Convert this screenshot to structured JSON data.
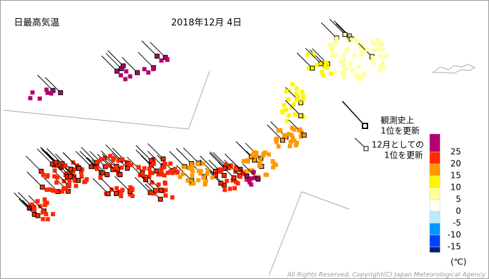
{
  "header": {
    "title": "日最高気温",
    "date": "2018年12月 4日"
  },
  "notes": {
    "record_all_time": [
      "観測史上",
      "1位を更新"
    ],
    "record_december": [
      "12月としての",
      "1位を更新"
    ]
  },
  "legend": {
    "colors": [
      "#b4006e",
      "#ff2800",
      "#ff9900",
      "#fff500",
      "#ffffa0",
      "#fffff2",
      "#b9ebff",
      "#0096ff",
      "#0041ff",
      "#002080"
    ],
    "labels": [
      25,
      20,
      15,
      10,
      5,
      0,
      -5,
      -10,
      -15
    ],
    "unit": "(℃)"
  },
  "footer": {
    "copyright": "All Rights Reserved, Copyright(C) Japan Meteorological Agency"
  }
}
